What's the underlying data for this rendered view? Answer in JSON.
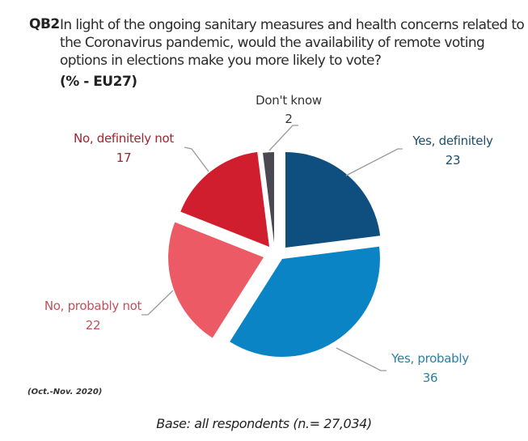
{
  "question": {
    "code": "QB2",
    "lines": [
      "In light of the ongoing sanitary measures and health concerns related to",
      "the Coronavirus pandemic, would the availability of remote voting",
      "options in elections make you more likely to vote?"
    ],
    "unit": "(% - EU27)"
  },
  "footer": {
    "period": "(Oct.-Nov. 2020)",
    "base": "Base: all respondents (n.= 27,034)"
  },
  "chart_data": {
    "type": "pie",
    "title": "In light of the ongoing sanitary measures and health concerns related to the Coronavirus pandemic, would the availability of remote voting options in elections make you more likely to vote?",
    "unit": "% - EU27",
    "start": "12 o'clock, clockwise",
    "exploded": true,
    "slices": [
      {
        "label": "Yes, definitely",
        "value": 23,
        "value_label": "23",
        "color": "#0f4f7f",
        "label_color": "#1d4d6b"
      },
      {
        "label": "Yes, probably",
        "value": 36,
        "value_label": "36",
        "color": "#0a84c4",
        "label_color": "#2a7fa8"
      },
      {
        "label": "No, probably not",
        "value": 22,
        "value_label": "22",
        "color": "#ec5a66",
        "label_color": "#c0505a"
      },
      {
        "label": "No, definitely not",
        "value": 17,
        "value_label": "17",
        "color": "#d11e2f",
        "label_color": "#a3222f"
      },
      {
        "label": "Don't know",
        "value": 2,
        "value_label": "2",
        "color": "#4a4850",
        "label_color": "#333333"
      }
    ]
  }
}
